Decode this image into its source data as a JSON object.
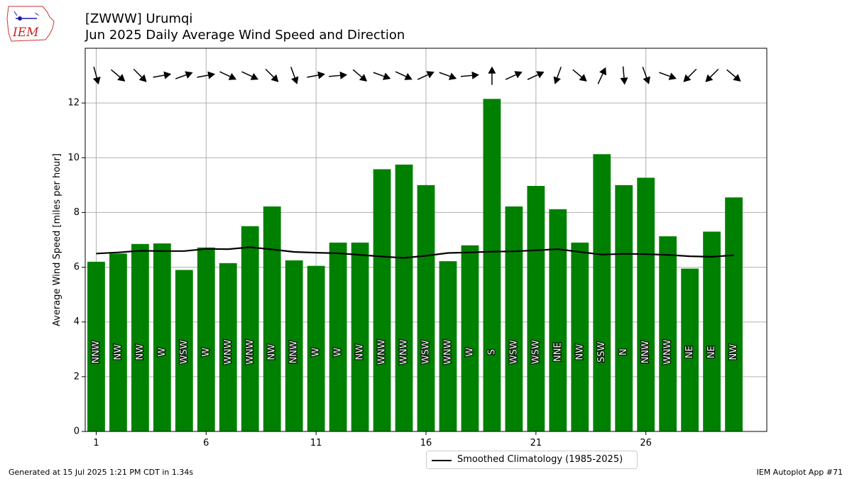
{
  "header": {
    "station_title": "[ZWWW] Urumqi",
    "subtitle": "Jun 2025 Daily Average Wind Speed and Direction"
  },
  "logo": {
    "text": "IEM"
  },
  "footer": {
    "generated": "Generated at 15 Jul 2025 1:21 PM CDT in 1.34s",
    "app": "IEM Autoplot App #71"
  },
  "legend": {
    "label": "Smoothed Climatology (1985-2025)"
  },
  "colors": {
    "bar": "#008000",
    "line": "#000000",
    "grid": "#b0b0b0",
    "label_text": "#ffffff"
  },
  "chart_data": {
    "type": "bar",
    "ylabel": "Average Wind Speed [miles per hour]",
    "xlabel": "",
    "ylim": [
      0,
      14
    ],
    "xlim": [
      0.5,
      31.5
    ],
    "xticks": [
      1,
      6,
      11,
      16,
      21,
      26
    ],
    "yticks": [
      0,
      2,
      4,
      6,
      8,
      10,
      12
    ],
    "grid": true,
    "legend_position": "bottom-center",
    "days": [
      1,
      2,
      3,
      4,
      5,
      6,
      7,
      8,
      9,
      10,
      11,
      12,
      13,
      14,
      15,
      16,
      17,
      18,
      19,
      20,
      21,
      22,
      23,
      24,
      25,
      26,
      27,
      28,
      29,
      30
    ],
    "series": [
      {
        "name": "Average Wind Speed",
        "values": [
          6.2,
          6.5,
          6.85,
          6.87,
          5.9,
          6.72,
          6.15,
          7.5,
          8.22,
          6.25,
          6.05,
          6.9,
          6.9,
          9.58,
          9.75,
          9.0,
          6.22,
          6.8,
          12.15,
          8.22,
          8.97,
          8.12,
          6.9,
          10.13,
          9.0,
          9.27,
          7.13,
          5.95,
          7.3,
          8.55
        ]
      },
      {
        "name": "Smoothed Climatology (1985-2025)",
        "values": [
          6.5,
          6.54,
          6.6,
          6.59,
          6.59,
          6.67,
          6.66,
          6.73,
          6.65,
          6.56,
          6.53,
          6.51,
          6.45,
          6.39,
          6.34,
          6.42,
          6.52,
          6.54,
          6.57,
          6.58,
          6.62,
          6.66,
          6.56,
          6.46,
          6.49,
          6.48,
          6.45,
          6.4,
          6.38,
          6.44
        ]
      }
    ],
    "direction_labels": [
      "NNW",
      "NW",
      "NW",
      "W",
      "WSW",
      "W",
      "WNW",
      "WNW",
      "NW",
      "NNW",
      "W",
      "W",
      "NW",
      "WNW",
      "WNW",
      "WSW",
      "WNW",
      "W",
      "S",
      "WSW",
      "WSW",
      "NNE",
      "NW",
      "SSW",
      "N",
      "NNW",
      "WNW",
      "NE",
      "NE",
      "NW"
    ],
    "direction_degrees": [
      345,
      310,
      315,
      260,
      250,
      260,
      295,
      295,
      315,
      340,
      260,
      265,
      310,
      290,
      295,
      245,
      290,
      265,
      180,
      245,
      245,
      20,
      310,
      205,
      355,
      340,
      290,
      45,
      45,
      310
    ]
  }
}
